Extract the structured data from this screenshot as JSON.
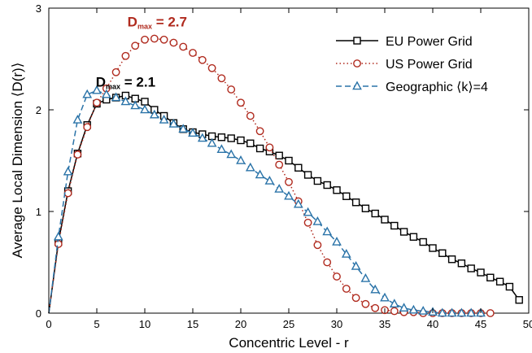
{
  "chart_data": {
    "type": "line",
    "xlabel": "Concentric Level - r",
    "ylabel": "Average Local Dimension ⟨D(r)⟩",
    "xlim": [
      0,
      50
    ],
    "ylim": [
      0,
      3
    ],
    "xticks": [
      0,
      5,
      10,
      15,
      20,
      25,
      30,
      35,
      40,
      45,
      50
    ],
    "yticks": [
      0,
      1,
      2,
      3
    ],
    "xtick_labels": [
      "0",
      "5",
      "10",
      "15",
      "20",
      "25",
      "30",
      "35",
      "40",
      "45",
      "50"
    ],
    "ytick_labels": [
      "0",
      "1",
      "2",
      "3"
    ],
    "grid": false,
    "legend_position": "top-right",
    "series": [
      {
        "name": "EU Power Grid",
        "color": "#000000",
        "marker": "square",
        "line_style": "solid",
        "x": [
          0,
          1,
          2,
          3,
          4,
          5,
          6,
          7,
          8,
          9,
          10,
          11,
          12,
          13,
          14,
          15,
          16,
          17,
          18,
          19,
          20,
          21,
          22,
          23,
          24,
          25,
          26,
          27,
          28,
          29,
          30,
          31,
          32,
          33,
          34,
          35,
          36,
          37,
          38,
          39,
          40,
          41,
          42,
          43,
          44,
          45,
          46,
          47,
          48,
          49
        ],
        "y": [
          0,
          0.7,
          1.2,
          1.57,
          1.85,
          2.06,
          2.1,
          2.12,
          2.14,
          2.11,
          2.08,
          2.0,
          1.94,
          1.87,
          1.81,
          1.78,
          1.76,
          1.74,
          1.73,
          1.72,
          1.7,
          1.67,
          1.62,
          1.59,
          1.55,
          1.5,
          1.43,
          1.36,
          1.3,
          1.26,
          1.21,
          1.15,
          1.09,
          1.03,
          0.98,
          0.92,
          0.86,
          0.8,
          0.75,
          0.7,
          0.64,
          0.59,
          0.53,
          0.49,
          0.44,
          0.4,
          0.35,
          0.31,
          0.26,
          0.13
        ]
      },
      {
        "name": "US Power Grid",
        "color": "#b02a1e",
        "marker": "circle",
        "line_style": "dotted",
        "x": [
          0,
          1,
          2,
          3,
          4,
          5,
          6,
          7,
          8,
          9,
          10,
          11,
          12,
          13,
          14,
          15,
          16,
          17,
          18,
          19,
          20,
          21,
          22,
          23,
          24,
          25,
          26,
          27,
          28,
          29,
          30,
          31,
          32,
          33,
          34,
          35,
          36,
          37,
          38,
          39,
          40,
          41,
          42,
          43,
          44,
          45,
          46
        ],
        "y": [
          0,
          0.68,
          1.18,
          1.56,
          1.83,
          2.07,
          2.21,
          2.37,
          2.53,
          2.63,
          2.69,
          2.7,
          2.69,
          2.66,
          2.62,
          2.56,
          2.49,
          2.41,
          2.31,
          2.2,
          2.07,
          1.94,
          1.79,
          1.63,
          1.46,
          1.29,
          1.1,
          0.89,
          0.67,
          0.5,
          0.36,
          0.24,
          0.15,
          0.09,
          0.05,
          0.03,
          0.02,
          0.01,
          0.01,
          0.0,
          0.0,
          0.0,
          0.0,
          0.0,
          0.0,
          0.0,
          0.0
        ]
      },
      {
        "name": "Geographic ⟨k⟩=4",
        "color": "#2a73a8",
        "marker": "triangle",
        "line_style": "dashed",
        "x": [
          0,
          1,
          2,
          3,
          4,
          5,
          6,
          7,
          8,
          9,
          10,
          11,
          12,
          13,
          14,
          15,
          16,
          17,
          18,
          19,
          20,
          21,
          22,
          23,
          24,
          25,
          26,
          27,
          28,
          29,
          30,
          31,
          32,
          33,
          34,
          35,
          36,
          37,
          38,
          39,
          40,
          41,
          42,
          43,
          44,
          45
        ],
        "y": [
          0,
          0.75,
          1.39,
          1.9,
          2.15,
          2.19,
          2.15,
          2.12,
          2.08,
          2.04,
          2.0,
          1.95,
          1.9,
          1.86,
          1.81,
          1.77,
          1.72,
          1.67,
          1.61,
          1.56,
          1.5,
          1.43,
          1.36,
          1.3,
          1.22,
          1.15,
          1.07,
          0.99,
          0.9,
          0.8,
          0.7,
          0.58,
          0.46,
          0.34,
          0.23,
          0.15,
          0.09,
          0.05,
          0.03,
          0.02,
          0.01,
          0.0,
          0.0,
          0.0,
          0.0,
          0.0
        ]
      }
    ],
    "annotations": [
      {
        "main": "D",
        "sub": "max",
        "rest": " = 2.7",
        "color": "#b02a1e",
        "x": 11.3,
        "y": 2.82
      },
      {
        "main": "D",
        "sub": "max",
        "rest": " = 2.1",
        "color": "#000000",
        "x": 8.0,
        "y": 2.23
      }
    ]
  }
}
